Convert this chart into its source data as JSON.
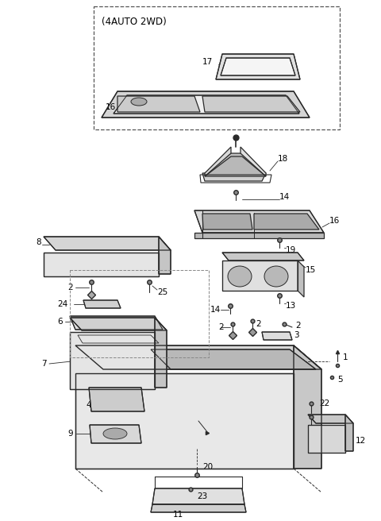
{
  "background_color": "#ffffff",
  "line_color": "#2a2a2a",
  "fig_width": 4.8,
  "fig_height": 6.56,
  "dpi": 100
}
